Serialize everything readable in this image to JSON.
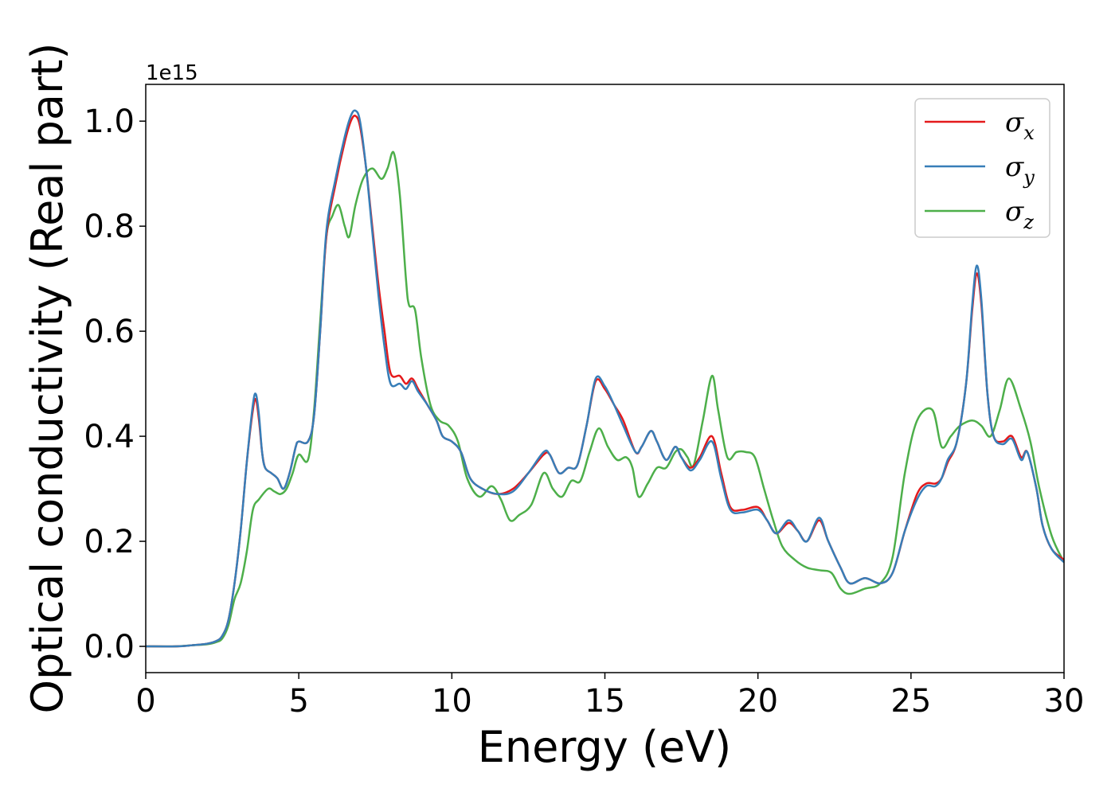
{
  "chart_data": {
    "type": "line",
    "xlabel": "Energy (eV)",
    "ylabel": "Optical conductivity (Real part)",
    "y_offset_label": "1e15",
    "xlim": [
      0,
      30
    ],
    "ylim": [
      -0.05,
      1.07
    ],
    "x_ticks": [
      0,
      5,
      10,
      15,
      20,
      25,
      30
    ],
    "y_ticks": [
      0.0,
      0.2,
      0.4,
      0.6,
      0.8,
      1.0
    ],
    "x_tick_labels": [
      "0",
      "5",
      "10",
      "15",
      "20",
      "25",
      "30"
    ],
    "y_tick_labels": [
      "0.0",
      "0.2",
      "0.4",
      "0.6",
      "0.8",
      "1.0"
    ],
    "grid": false,
    "legend_position": "top-right",
    "series": [
      {
        "name": "σ",
        "subscript": "x",
        "color": "#e41a1c",
        "points": [
          [
            0,
            0
          ],
          [
            1,
            0
          ],
          [
            1.5,
            0.002
          ],
          [
            2,
            0.005
          ],
          [
            2.3,
            0.01
          ],
          [
            2.5,
            0.02
          ],
          [
            2.7,
            0.05
          ],
          [
            2.9,
            0.12
          ],
          [
            3.1,
            0.22
          ],
          [
            3.3,
            0.35
          ],
          [
            3.5,
            0.45
          ],
          [
            3.6,
            0.47
          ],
          [
            3.7,
            0.43
          ],
          [
            3.8,
            0.37
          ],
          [
            3.9,
            0.34
          ],
          [
            4.1,
            0.33
          ],
          [
            4.3,
            0.32
          ],
          [
            4.5,
            0.3
          ],
          [
            4.7,
            0.33
          ],
          [
            4.9,
            0.38
          ],
          [
            5,
            0.39
          ],
          [
            5.3,
            0.39
          ],
          [
            5.5,
            0.44
          ],
          [
            5.7,
            0.6
          ],
          [
            5.9,
            0.78
          ],
          [
            6.2,
            0.88
          ],
          [
            6.5,
            0.96
          ],
          [
            6.7,
            1.0
          ],
          [
            6.85,
            1.01
          ],
          [
            7,
            0.99
          ],
          [
            7.2,
            0.91
          ],
          [
            7.4,
            0.8
          ],
          [
            7.6,
            0.69
          ],
          [
            7.8,
            0.6
          ],
          [
            8,
            0.52
          ],
          [
            8.3,
            0.515
          ],
          [
            8.5,
            0.5
          ],
          [
            8.7,
            0.51
          ],
          [
            8.9,
            0.49
          ],
          [
            9.2,
            0.46
          ],
          [
            9.5,
            0.43
          ],
          [
            9.7,
            0.4
          ],
          [
            10,
            0.39
          ],
          [
            10.3,
            0.37
          ],
          [
            10.6,
            0.32
          ],
          [
            11,
            0.3
          ],
          [
            11.5,
            0.29
          ],
          [
            12,
            0.3
          ],
          [
            12.5,
            0.33
          ],
          [
            13,
            0.365
          ],
          [
            13.2,
            0.365
          ],
          [
            13.5,
            0.33
          ],
          [
            13.8,
            0.34
          ],
          [
            14.1,
            0.345
          ],
          [
            14.4,
            0.42
          ],
          [
            14.7,
            0.505
          ],
          [
            15,
            0.49
          ],
          [
            15.3,
            0.46
          ],
          [
            15.6,
            0.43
          ],
          [
            16,
            0.37
          ],
          [
            16.2,
            0.38
          ],
          [
            16.5,
            0.41
          ],
          [
            16.7,
            0.39
          ],
          [
            17,
            0.355
          ],
          [
            17.3,
            0.38
          ],
          [
            17.5,
            0.36
          ],
          [
            17.8,
            0.34
          ],
          [
            18.1,
            0.36
          ],
          [
            18.5,
            0.4
          ],
          [
            18.8,
            0.33
          ],
          [
            19.1,
            0.265
          ],
          [
            19.5,
            0.26
          ],
          [
            20,
            0.265
          ],
          [
            20.3,
            0.24
          ],
          [
            20.6,
            0.215
          ],
          [
            21,
            0.235
          ],
          [
            21.3,
            0.22
          ],
          [
            21.6,
            0.2
          ],
          [
            22,
            0.24
          ],
          [
            22.3,
            0.2
          ],
          [
            22.7,
            0.15
          ],
          [
            23,
            0.12
          ],
          [
            23.5,
            0.13
          ],
          [
            24,
            0.12
          ],
          [
            24.4,
            0.14
          ],
          [
            24.8,
            0.22
          ],
          [
            25.2,
            0.29
          ],
          [
            25.5,
            0.31
          ],
          [
            25.8,
            0.31
          ],
          [
            26,
            0.32
          ],
          [
            26.2,
            0.35
          ],
          [
            26.5,
            0.39
          ],
          [
            26.8,
            0.5
          ],
          [
            27,
            0.64
          ],
          [
            27.15,
            0.71
          ],
          [
            27.3,
            0.65
          ],
          [
            27.5,
            0.48
          ],
          [
            27.7,
            0.4
          ],
          [
            28,
            0.39
          ],
          [
            28.3,
            0.4
          ],
          [
            28.6,
            0.36
          ],
          [
            28.8,
            0.37
          ],
          [
            29.1,
            0.3
          ],
          [
            29.3,
            0.23
          ],
          [
            29.6,
            0.185
          ],
          [
            30,
            0.165
          ]
        ]
      },
      {
        "name": "σ",
        "subscript": "y",
        "color": "#377eb8",
        "points": [
          [
            0,
            0
          ],
          [
            1,
            0
          ],
          [
            1.5,
            0.002
          ],
          [
            2,
            0.005
          ],
          [
            2.3,
            0.01
          ],
          [
            2.5,
            0.02
          ],
          [
            2.7,
            0.05
          ],
          [
            2.9,
            0.12
          ],
          [
            3.1,
            0.22
          ],
          [
            3.3,
            0.35
          ],
          [
            3.5,
            0.46
          ],
          [
            3.6,
            0.48
          ],
          [
            3.7,
            0.44
          ],
          [
            3.8,
            0.37
          ],
          [
            3.9,
            0.34
          ],
          [
            4.1,
            0.33
          ],
          [
            4.3,
            0.32
          ],
          [
            4.5,
            0.3
          ],
          [
            4.7,
            0.33
          ],
          [
            4.9,
            0.38
          ],
          [
            5,
            0.39
          ],
          [
            5.3,
            0.39
          ],
          [
            5.5,
            0.44
          ],
          [
            5.7,
            0.6
          ],
          [
            5.9,
            0.79
          ],
          [
            6.2,
            0.89
          ],
          [
            6.5,
            0.97
          ],
          [
            6.7,
            1.01
          ],
          [
            6.85,
            1.02
          ],
          [
            7,
            1.0
          ],
          [
            7.2,
            0.91
          ],
          [
            7.4,
            0.79
          ],
          [
            7.6,
            0.67
          ],
          [
            7.8,
            0.57
          ],
          [
            8,
            0.5
          ],
          [
            8.3,
            0.5
          ],
          [
            8.5,
            0.49
          ],
          [
            8.7,
            0.505
          ],
          [
            8.9,
            0.485
          ],
          [
            9.2,
            0.46
          ],
          [
            9.5,
            0.43
          ],
          [
            9.7,
            0.4
          ],
          [
            10,
            0.39
          ],
          [
            10.3,
            0.37
          ],
          [
            10.6,
            0.32
          ],
          [
            11,
            0.3
          ],
          [
            11.5,
            0.29
          ],
          [
            12,
            0.295
          ],
          [
            12.5,
            0.33
          ],
          [
            13,
            0.37
          ],
          [
            13.2,
            0.365
          ],
          [
            13.5,
            0.33
          ],
          [
            13.8,
            0.34
          ],
          [
            14.1,
            0.345
          ],
          [
            14.4,
            0.42
          ],
          [
            14.7,
            0.51
          ],
          [
            15,
            0.495
          ],
          [
            15.3,
            0.46
          ],
          [
            15.6,
            0.42
          ],
          [
            16,
            0.37
          ],
          [
            16.2,
            0.38
          ],
          [
            16.5,
            0.41
          ],
          [
            16.7,
            0.39
          ],
          [
            17,
            0.355
          ],
          [
            17.3,
            0.38
          ],
          [
            17.5,
            0.36
          ],
          [
            17.8,
            0.335
          ],
          [
            18.1,
            0.355
          ],
          [
            18.5,
            0.39
          ],
          [
            18.8,
            0.32
          ],
          [
            19.1,
            0.26
          ],
          [
            19.5,
            0.255
          ],
          [
            20,
            0.26
          ],
          [
            20.3,
            0.24
          ],
          [
            20.6,
            0.215
          ],
          [
            21,
            0.24
          ],
          [
            21.3,
            0.22
          ],
          [
            21.6,
            0.2
          ],
          [
            22,
            0.245
          ],
          [
            22.3,
            0.2
          ],
          [
            22.7,
            0.15
          ],
          [
            23,
            0.12
          ],
          [
            23.5,
            0.13
          ],
          [
            24,
            0.12
          ],
          [
            24.4,
            0.14
          ],
          [
            24.8,
            0.22
          ],
          [
            25.2,
            0.28
          ],
          [
            25.5,
            0.305
          ],
          [
            25.8,
            0.305
          ],
          [
            26,
            0.32
          ],
          [
            26.2,
            0.355
          ],
          [
            26.5,
            0.39
          ],
          [
            26.8,
            0.5
          ],
          [
            27,
            0.65
          ],
          [
            27.15,
            0.725
          ],
          [
            27.3,
            0.66
          ],
          [
            27.5,
            0.48
          ],
          [
            27.7,
            0.4
          ],
          [
            28,
            0.385
          ],
          [
            28.3,
            0.395
          ],
          [
            28.6,
            0.355
          ],
          [
            28.8,
            0.37
          ],
          [
            29.1,
            0.3
          ],
          [
            29.3,
            0.23
          ],
          [
            29.6,
            0.185
          ],
          [
            30,
            0.16
          ]
        ]
      },
      {
        "name": "σ",
        "subscript": "z",
        "color": "#4daf4a",
        "points": [
          [
            0,
            0
          ],
          [
            1,
            0
          ],
          [
            1.5,
            0.002
          ],
          [
            2,
            0.004
          ],
          [
            2.3,
            0.008
          ],
          [
            2.5,
            0.015
          ],
          [
            2.7,
            0.04
          ],
          [
            2.9,
            0.09
          ],
          [
            3.1,
            0.12
          ],
          [
            3.3,
            0.18
          ],
          [
            3.5,
            0.26
          ],
          [
            3.7,
            0.28
          ],
          [
            4,
            0.3
          ],
          [
            4.2,
            0.295
          ],
          [
            4.4,
            0.29
          ],
          [
            4.6,
            0.3
          ],
          [
            4.8,
            0.33
          ],
          [
            5,
            0.365
          ],
          [
            5.3,
            0.355
          ],
          [
            5.5,
            0.45
          ],
          [
            5.7,
            0.62
          ],
          [
            5.9,
            0.78
          ],
          [
            6.1,
            0.82
          ],
          [
            6.3,
            0.84
          ],
          [
            6.5,
            0.8
          ],
          [
            6.65,
            0.78
          ],
          [
            6.85,
            0.84
          ],
          [
            7.1,
            0.89
          ],
          [
            7.4,
            0.91
          ],
          [
            7.7,
            0.89
          ],
          [
            7.9,
            0.91
          ],
          [
            8.1,
            0.94
          ],
          [
            8.3,
            0.86
          ],
          [
            8.5,
            0.7
          ],
          [
            8.6,
            0.65
          ],
          [
            8.8,
            0.64
          ],
          [
            9,
            0.55
          ],
          [
            9.3,
            0.46
          ],
          [
            9.6,
            0.43
          ],
          [
            9.9,
            0.42
          ],
          [
            10.2,
            0.39
          ],
          [
            10.5,
            0.32
          ],
          [
            10.9,
            0.285
          ],
          [
            11.3,
            0.305
          ],
          [
            11.6,
            0.28
          ],
          [
            11.9,
            0.24
          ],
          [
            12.2,
            0.25
          ],
          [
            12.6,
            0.27
          ],
          [
            13,
            0.33
          ],
          [
            13.3,
            0.3
          ],
          [
            13.6,
            0.285
          ],
          [
            13.9,
            0.315
          ],
          [
            14.2,
            0.315
          ],
          [
            14.5,
            0.37
          ],
          [
            14.8,
            0.415
          ],
          [
            15.1,
            0.38
          ],
          [
            15.4,
            0.355
          ],
          [
            15.7,
            0.36
          ],
          [
            15.9,
            0.34
          ],
          [
            16.1,
            0.285
          ],
          [
            16.4,
            0.31
          ],
          [
            16.7,
            0.34
          ],
          [
            17,
            0.34
          ],
          [
            17.3,
            0.37
          ],
          [
            17.5,
            0.375
          ],
          [
            17.7,
            0.36
          ],
          [
            17.9,
            0.345
          ],
          [
            18.2,
            0.43
          ],
          [
            18.5,
            0.515
          ],
          [
            18.7,
            0.45
          ],
          [
            19,
            0.36
          ],
          [
            19.3,
            0.37
          ],
          [
            19.6,
            0.37
          ],
          [
            19.9,
            0.36
          ],
          [
            20.2,
            0.3
          ],
          [
            20.5,
            0.24
          ],
          [
            20.8,
            0.19
          ],
          [
            21.2,
            0.165
          ],
          [
            21.6,
            0.15
          ],
          [
            22,
            0.145
          ],
          [
            22.4,
            0.14
          ],
          [
            22.7,
            0.11
          ],
          [
            23,
            0.1
          ],
          [
            23.5,
            0.11
          ],
          [
            24,
            0.12
          ],
          [
            24.4,
            0.17
          ],
          [
            24.8,
            0.33
          ],
          [
            25.2,
            0.43
          ],
          [
            25.7,
            0.45
          ],
          [
            26,
            0.38
          ],
          [
            26.3,
            0.4
          ],
          [
            26.6,
            0.42
          ],
          [
            27,
            0.43
          ],
          [
            27.3,
            0.42
          ],
          [
            27.6,
            0.4
          ],
          [
            27.9,
            0.45
          ],
          [
            28.2,
            0.51
          ],
          [
            28.6,
            0.45
          ],
          [
            28.9,
            0.39
          ],
          [
            29.2,
            0.3
          ],
          [
            29.6,
            0.21
          ],
          [
            30,
            0.16
          ]
        ]
      }
    ]
  }
}
